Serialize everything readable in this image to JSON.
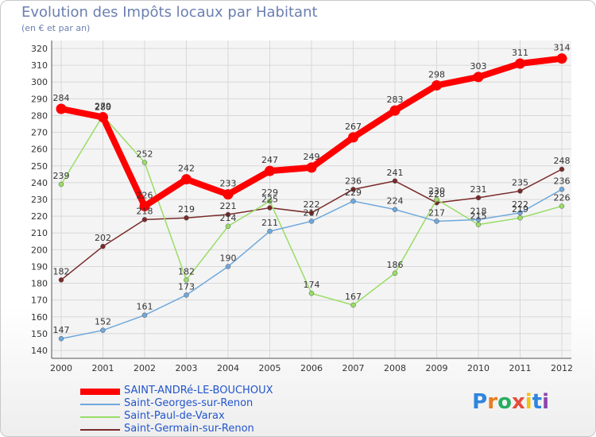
{
  "title": "Evolution des Impôts locaux par Habitant",
  "subtitle": "(en € et par an)",
  "logo": "Proxiti",
  "chart_data": {
    "type": "line",
    "title": "Evolution des Impôts locaux par Habitant",
    "subtitle": "(en € et par an)",
    "x": [
      "2000",
      "2001",
      "2002",
      "2003",
      "2004",
      "2005",
      "2006",
      "2007",
      "2008",
      "2009",
      "2010",
      "2011",
      "2012"
    ],
    "ylim": [
      140,
      320
    ],
    "yticks": [
      140,
      150,
      160,
      170,
      180,
      190,
      200,
      210,
      220,
      230,
      240,
      250,
      260,
      270,
      280,
      290,
      300,
      310,
      320
    ],
    "grid": true,
    "legend_position": "bottom-left",
    "series": [
      {
        "name": "SAINT-ANDRé-LE-BOUCHOUX",
        "color": "#ff0000",
        "values": [
          284,
          279,
          226,
          242,
          233,
          247,
          249,
          267,
          283,
          298,
          303,
          311,
          314
        ]
      },
      {
        "name": "Saint-Georges-sur-Renon",
        "color": "#6fa8dc",
        "values": [
          147,
          152,
          161,
          173,
          190,
          211,
          217,
          229,
          224,
          217,
          218,
          222,
          236
        ]
      },
      {
        "name": "Saint-Paul-de-Varax",
        "color": "#99dd66",
        "values": [
          239,
          280,
          252,
          182,
          214,
          229,
          174,
          167,
          186,
          230,
          215,
          219,
          226
        ]
      },
      {
        "name": "Saint-Germain-sur-Renon",
        "color": "#7a2a2a",
        "values": [
          182,
          202,
          218,
          219,
          221,
          225,
          222,
          236,
          241,
          228,
          231,
          235,
          248
        ]
      }
    ]
  }
}
